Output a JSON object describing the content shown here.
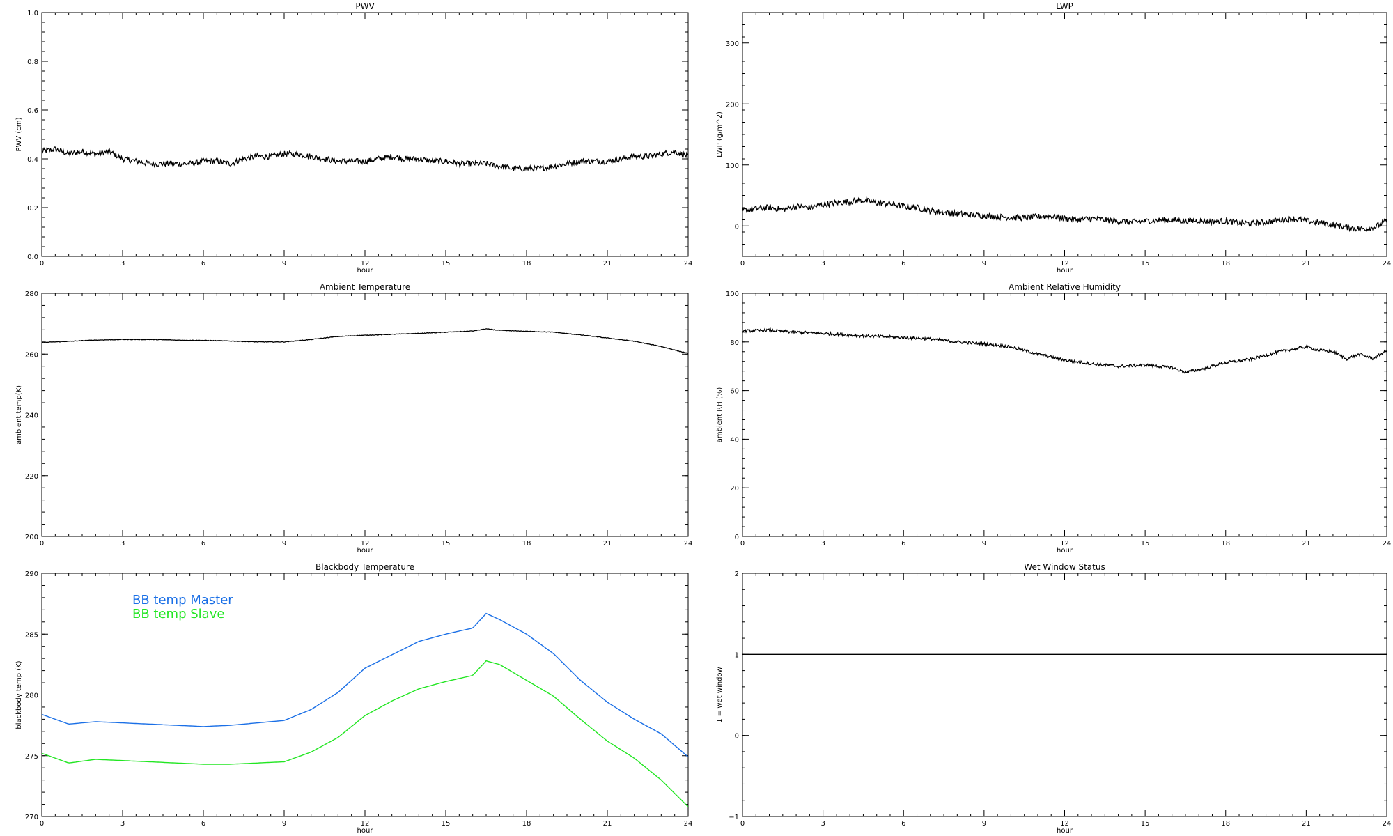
{
  "colors": {
    "background": "#ffffff",
    "foreground": "#000000",
    "bb_master": "#1a6fe6",
    "bb_slave": "#22e622"
  },
  "chart_data": [
    {
      "id": "pwv",
      "type": "line",
      "title": "PWV",
      "xlabel": "hour",
      "ylabel": "PWV (cm)",
      "xlim": [
        0,
        24
      ],
      "ylim": [
        0.0,
        1.0
      ],
      "xticks": [
        0,
        3,
        6,
        9,
        12,
        15,
        18,
        21,
        24
      ],
      "xtick_labels": [
        "0",
        "3",
        "6",
        "9",
        "12",
        "15",
        "18",
        "21",
        "24"
      ],
      "yticks": [
        0.0,
        0.2,
        0.4,
        0.6,
        0.8,
        1.0
      ],
      "ytick_labels": [
        "0.0",
        "0.2",
        "0.4",
        "0.6",
        "0.8",
        "1.0"
      ],
      "grid": false,
      "noise": 0.012,
      "series": [
        {
          "color": "#000000",
          "x": [
            0,
            0.5,
            1,
            1.5,
            2,
            2.5,
            3,
            3.5,
            4,
            4.5,
            5,
            5.5,
            6,
            6.5,
            7,
            7.5,
            8,
            8.5,
            9,
            9.5,
            10,
            10.5,
            11,
            11.5,
            12,
            12.5,
            13,
            13.5,
            14,
            14.5,
            15,
            15.5,
            16,
            16.5,
            17,
            17.5,
            18,
            18.5,
            19,
            19.5,
            20,
            20.5,
            21,
            21.5,
            22,
            22.5,
            23,
            23.5,
            24
          ],
          "y": [
            0.43,
            0.44,
            0.42,
            0.43,
            0.42,
            0.43,
            0.4,
            0.39,
            0.38,
            0.38,
            0.38,
            0.38,
            0.39,
            0.39,
            0.38,
            0.4,
            0.41,
            0.41,
            0.42,
            0.42,
            0.41,
            0.4,
            0.39,
            0.39,
            0.39,
            0.4,
            0.41,
            0.4,
            0.4,
            0.39,
            0.39,
            0.38,
            0.38,
            0.38,
            0.37,
            0.36,
            0.36,
            0.36,
            0.37,
            0.38,
            0.39,
            0.39,
            0.39,
            0.4,
            0.41,
            0.41,
            0.42,
            0.43,
            0.41
          ]
        }
      ]
    },
    {
      "id": "lwp",
      "type": "line",
      "title": "LWP",
      "xlabel": "hour",
      "ylabel": "LWP (g/m^2)",
      "xlim": [
        0,
        24
      ],
      "ylim": [
        -50,
        350
      ],
      "xticks": [
        0,
        3,
        6,
        9,
        12,
        15,
        18,
        21,
        24
      ],
      "xtick_labels": [
        "0",
        "3",
        "6",
        "9",
        "12",
        "15",
        "18",
        "21",
        "24"
      ],
      "yticks": [
        0,
        100,
        200,
        300
      ],
      "ytick_labels": [
        "0",
        "100",
        "200",
        "300"
      ],
      "grid": false,
      "noise": 5,
      "series": [
        {
          "color": "#000000",
          "x": [
            0,
            0.5,
            1,
            1.5,
            2,
            2.5,
            3,
            3.5,
            4,
            4.5,
            5,
            5.5,
            6,
            6.5,
            7,
            7.5,
            8,
            8.5,
            9,
            9.5,
            10,
            10.5,
            11,
            11.5,
            12,
            12.5,
            13,
            13.5,
            14,
            14.5,
            15,
            15.5,
            16,
            16.5,
            17,
            17.5,
            18,
            18.5,
            19,
            19.5,
            20,
            20.5,
            21,
            21.5,
            22,
            22.5,
            23,
            23.5,
            24
          ],
          "y": [
            25,
            28,
            30,
            27,
            32,
            30,
            35,
            38,
            40,
            42,
            38,
            36,
            32,
            30,
            25,
            22,
            20,
            18,
            17,
            15,
            14,
            13,
            15,
            16,
            12,
            10,
            12,
            10,
            8,
            6,
            8,
            9,
            10,
            8,
            9,
            7,
            8,
            5,
            4,
            6,
            10,
            12,
            8,
            5,
            2,
            -2,
            -5,
            -3,
            8
          ]
        }
      ]
    },
    {
      "id": "ambient_temp",
      "type": "line",
      "title": "Ambient Temperature",
      "xlabel": "hour",
      "ylabel": "ambient temp(K)",
      "xlim": [
        0,
        24
      ],
      "ylim": [
        200,
        280
      ],
      "xticks": [
        0,
        3,
        6,
        9,
        12,
        15,
        18,
        21,
        24
      ],
      "xtick_labels": [
        "0",
        "3",
        "6",
        "9",
        "12",
        "15",
        "18",
        "21",
        "24"
      ],
      "yticks": [
        200,
        220,
        240,
        260,
        280
      ],
      "ytick_labels": [
        "200",
        "220",
        "240",
        "260",
        "280"
      ],
      "grid": false,
      "noise": 0.1,
      "series": [
        {
          "color": "#000000",
          "x": [
            0,
            1,
            2,
            3,
            4,
            5,
            6,
            7,
            8,
            9,
            10,
            11,
            12,
            13,
            14,
            15,
            16,
            16.5,
            17,
            18,
            19,
            20,
            21,
            22,
            23,
            24
          ],
          "y": [
            263.8,
            264.2,
            264.6,
            264.8,
            264.8,
            264.6,
            264.5,
            264.3,
            264.0,
            264.0,
            264.8,
            265.8,
            266.2,
            266.5,
            266.8,
            267.2,
            267.6,
            268.3,
            267.8,
            267.5,
            267.2,
            266.3,
            265.3,
            264.2,
            262.5,
            260.2
          ]
        }
      ]
    },
    {
      "id": "ambient_rh",
      "type": "line",
      "title": "Ambient Relative Humidity",
      "xlabel": "hour",
      "ylabel": "ambient RH (%)",
      "xlim": [
        0,
        24
      ],
      "ylim": [
        0,
        100
      ],
      "xticks": [
        0,
        3,
        6,
        9,
        12,
        15,
        18,
        21,
        24
      ],
      "xtick_labels": [
        "0",
        "3",
        "6",
        "9",
        "12",
        "15",
        "18",
        "21",
        "24"
      ],
      "yticks": [
        0,
        20,
        40,
        60,
        80,
        100
      ],
      "ytick_labels": [
        "0",
        "20",
        "40",
        "60",
        "80",
        "100"
      ],
      "grid": false,
      "noise": 0.6,
      "series": [
        {
          "color": "#000000",
          "x": [
            0,
            1,
            2,
            3,
            4,
            5,
            6,
            7,
            8,
            9,
            10,
            11,
            12,
            13,
            14,
            15,
            16,
            16.5,
            17,
            18,
            19,
            20,
            21,
            21.5,
            22,
            22.5,
            23,
            23.5,
            24
          ],
          "y": [
            84.5,
            84.8,
            84.0,
            83.5,
            82.8,
            82.3,
            81.8,
            81.2,
            80.0,
            79.2,
            78.0,
            75.0,
            72.5,
            71.0,
            70.0,
            70.5,
            69.5,
            67.5,
            68.5,
            71.5,
            73.0,
            76.0,
            78.0,
            76.5,
            76.0,
            73.0,
            75.0,
            73.0,
            76.5
          ]
        }
      ]
    },
    {
      "id": "bb_temp",
      "type": "line",
      "title": "Blackbody Temperature",
      "xlabel": "hour",
      "ylabel": "blackbody temp (K)",
      "xlim": [
        0,
        24
      ],
      "ylim": [
        270,
        290
      ],
      "xticks": [
        0,
        3,
        6,
        9,
        12,
        15,
        18,
        21,
        24
      ],
      "xtick_labels": [
        "0",
        "3",
        "6",
        "9",
        "12",
        "15",
        "18",
        "21",
        "24"
      ],
      "yticks": [
        270,
        275,
        280,
        285,
        290
      ],
      "ytick_labels": [
        "270",
        "275",
        "280",
        "285",
        "290"
      ],
      "grid": false,
      "noise": 0,
      "legend_position": "top-left",
      "series": [
        {
          "name": "BB temp Master",
          "color": "#1a6fe6",
          "x": [
            0,
            1,
            2,
            3,
            4,
            5,
            6,
            7,
            8,
            9,
            10,
            11,
            12,
            13,
            14,
            15,
            16,
            16.5,
            17,
            18,
            19,
            20,
            21,
            22,
            23,
            24
          ],
          "y": [
            278.4,
            277.6,
            277.8,
            277.7,
            277.6,
            277.5,
            277.4,
            277.5,
            277.7,
            277.9,
            278.8,
            280.2,
            282.2,
            283.3,
            284.4,
            285.0,
            285.5,
            286.7,
            286.2,
            285.0,
            283.4,
            281.2,
            279.4,
            278.0,
            276.8,
            274.9
          ]
        },
        {
          "name": "BB temp Slave",
          "color": "#22e622",
          "x": [
            0,
            1,
            2,
            3,
            4,
            5,
            6,
            7,
            8,
            9,
            10,
            11,
            12,
            13,
            14,
            15,
            16,
            16.5,
            17,
            18,
            19,
            20,
            21,
            22,
            23,
            24
          ],
          "y": [
            275.2,
            274.4,
            274.7,
            274.6,
            274.5,
            274.4,
            274.3,
            274.3,
            274.4,
            274.5,
            275.3,
            276.5,
            278.3,
            279.5,
            280.5,
            281.1,
            281.6,
            282.8,
            282.5,
            281.2,
            279.9,
            278.0,
            276.2,
            274.8,
            273.0,
            270.8
          ]
        }
      ]
    },
    {
      "id": "wet_window",
      "type": "line",
      "title": "Wet Window Status",
      "xlabel": "hour",
      "ylabel": "1 = wet window",
      "xlim": [
        0,
        24
      ],
      "ylim": [
        -1,
        2
      ],
      "xticks": [
        0,
        3,
        6,
        9,
        12,
        15,
        18,
        21,
        24
      ],
      "xtick_labels": [
        "0",
        "3",
        "6",
        "9",
        "12",
        "15",
        "18",
        "21",
        "24"
      ],
      "yticks": [
        -1,
        0,
        1,
        2
      ],
      "ytick_labels": [
        "−1",
        "0",
        "1",
        "2"
      ],
      "grid": false,
      "noise": 0,
      "series": [
        {
          "color": "#000000",
          "x": [
            0,
            24
          ],
          "y": [
            1,
            1
          ]
        }
      ]
    }
  ]
}
